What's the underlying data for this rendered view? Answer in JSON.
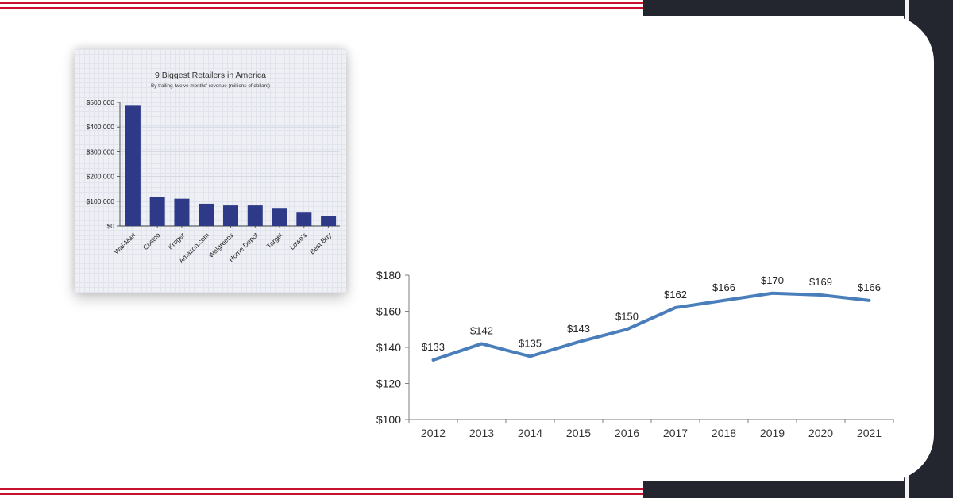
{
  "charts": {
    "chart_data": [
      {
        "type": "bar",
        "title": "9 Biggest Retailers in America",
        "subtitle": "By trailing-twelve months' revenue (millions of dollars)",
        "categories": [
          "Wal-Mart",
          "Costco",
          "Kroger",
          "Amazon.com",
          "Walgreens",
          "Home Depot",
          "Target",
          "Lowe's",
          "Best Buy"
        ],
        "values": [
          486000,
          116000,
          110000,
          90000,
          83000,
          83000,
          73000,
          57000,
          40000
        ],
        "ylim": [
          0,
          500000
        ],
        "yticks": [
          0,
          100000,
          200000,
          300000,
          400000,
          500000
        ],
        "ytick_labels": [
          "$0",
          "$100,000",
          "$200,000",
          "$300,000",
          "$400,000",
          "$500,000"
        ],
        "bar_color": "#2e3a87",
        "grid": true
      },
      {
        "type": "line",
        "x": [
          "2012",
          "2013",
          "2014",
          "2015",
          "2016",
          "2017",
          "2018",
          "2019",
          "2020",
          "2021"
        ],
        "values": [
          133,
          142,
          135,
          143,
          150,
          162,
          166,
          170,
          169,
          166
        ],
        "data_labels": [
          "$133",
          "$142",
          "$135",
          "$143",
          "$150",
          "$162",
          "$166",
          "$170",
          "$169",
          "$166"
        ],
        "ylim": [
          100,
          180
        ],
        "yticks": [
          100,
          120,
          140,
          160,
          180
        ],
        "ytick_labels": [
          "$100",
          "$120",
          "$140",
          "$160",
          "$180"
        ],
        "line_color": "#4a7ebb",
        "grid": false
      }
    ]
  },
  "colors": {
    "accent_red": "#c8102e",
    "dark_band": "#23262f"
  }
}
